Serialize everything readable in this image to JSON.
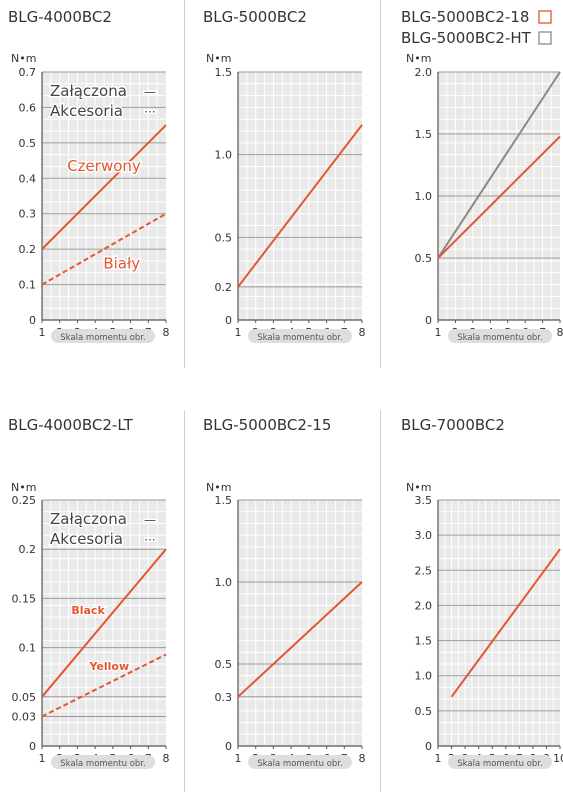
{
  "theme": {
    "grid_bg": "#e9e9e9",
    "grid_minor": "#ffffff",
    "grid_major": "#9a9a9a",
    "series_color": "#e4572e",
    "gray_series_color": "#8a8a8a",
    "text_color": "#333333",
    "pill_bg": "#dedede"
  },
  "chart_data": [
    {
      "type": "line",
      "title": "BLG-4000BC2",
      "ylabel": "N•m",
      "xlabel": "Skala momentu obr.",
      "xlim": [
        1,
        8
      ],
      "ylim": [
        0,
        0.7
      ],
      "xticks": [
        1,
        2,
        3,
        4,
        5,
        6,
        7,
        8
      ],
      "yticks": [
        0,
        0.1,
        0.2,
        0.3,
        0.4,
        0.5,
        0.6,
        0.7
      ],
      "ytick_labels": [
        "0",
        "0.1",
        "0.2",
        "0.3",
        "0.4",
        "0.5",
        "0.6",
        "0.7"
      ],
      "legend": [
        {
          "label": "Załączona",
          "symbol": "—"
        },
        {
          "label": "Akcesoria",
          "symbol": "···"
        }
      ],
      "series": [
        {
          "name": "Czerwony",
          "style": "solid",
          "x": [
            1,
            8
          ],
          "y": [
            0.2,
            0.55
          ],
          "label_at": [
            4.5,
            0.42
          ]
        },
        {
          "name": "Biały",
          "style": "dashed",
          "x": [
            1,
            8
          ],
          "y": [
            0.1,
            0.3
          ],
          "label_at": [
            5.5,
            0.145
          ]
        }
      ]
    },
    {
      "type": "line",
      "title": "BLG-5000BC2",
      "ylabel": "N•m",
      "xlabel": "Skala momentu obr.",
      "xlim": [
        1,
        8
      ],
      "ylim": [
        0,
        1.5
      ],
      "xticks": [
        1,
        2,
        3,
        4,
        5,
        6,
        7,
        8
      ],
      "yticks": [
        0,
        0.2,
        0.5,
        1.0,
        1.5
      ],
      "ytick_labels": [
        "0",
        "0.2",
        "0.5",
        "1.0",
        "1.5"
      ],
      "series": [
        {
          "style": "solid",
          "x": [
            1,
            8
          ],
          "y": [
            0.2,
            1.18
          ]
        }
      ]
    },
    {
      "type": "line",
      "title_lines": [
        {
          "text": "BLG-5000BC2-18",
          "box": "orange"
        },
        {
          "text": "BLG-5000BC2-HT",
          "box": "gray"
        }
      ],
      "ylabel": "N•m",
      "xlabel": "Skala momentu obr.",
      "xlim": [
        1,
        8
      ],
      "ylim": [
        0,
        2.0
      ],
      "xticks": [
        1,
        2,
        3,
        4,
        5,
        6,
        7,
        8
      ],
      "yticks": [
        0,
        0.5,
        1.0,
        1.5,
        2.0
      ],
      "ytick_labels": [
        "0",
        "0.5",
        "1.0",
        "1.5",
        "2.0"
      ],
      "series": [
        {
          "style": "solid",
          "color": "gray",
          "x": [
            1,
            8
          ],
          "y": [
            0.5,
            2.0
          ]
        },
        {
          "style": "solid",
          "x": [
            1,
            8
          ],
          "y": [
            0.5,
            1.48
          ]
        }
      ]
    },
    {
      "type": "line",
      "title": "BLG-4000BC2-LT",
      "ylabel": "N•m",
      "xlabel": "Skala momentu obr.",
      "xlim": [
        1,
        8
      ],
      "ylim": [
        0,
        0.25
      ],
      "xticks": [
        1,
        2,
        3,
        4,
        5,
        6,
        7,
        8
      ],
      "yticks": [
        0,
        0.03,
        0.05,
        0.1,
        0.15,
        0.2,
        0.25
      ],
      "ytick_labels": [
        "0",
        "0.03",
        "0.05",
        "0.1",
        "0.15",
        "0.2",
        "0.25"
      ],
      "legend": [
        {
          "label": "Załączona",
          "symbol": "—"
        },
        {
          "label": "Akcesoria",
          "symbol": "···"
        }
      ],
      "series": [
        {
          "name": "Black",
          "style": "solid",
          "x": [
            1,
            8
          ],
          "y": [
            0.05,
            0.2
          ],
          "label_at": [
            3.6,
            0.134
          ]
        },
        {
          "name": "Yellow",
          "style": "dashed",
          "x": [
            1,
            8
          ],
          "y": [
            0.03,
            0.093
          ],
          "label_at": [
            4.8,
            0.077
          ]
        }
      ]
    },
    {
      "type": "line",
      "title": "BLG-5000BC2-15",
      "ylabel": "N•m",
      "xlabel": "Skala momentu obr.",
      "xlim": [
        1,
        8
      ],
      "ylim": [
        0,
        1.5
      ],
      "xticks": [
        1,
        2,
        3,
        4,
        5,
        6,
        7,
        8
      ],
      "yticks": [
        0,
        0.3,
        0.5,
        1.0,
        1.5
      ],
      "ytick_labels": [
        "0",
        "0.3",
        "0.5",
        "1.0",
        "1.5"
      ],
      "series": [
        {
          "style": "solid",
          "x": [
            1,
            8
          ],
          "y": [
            0.3,
            1.0
          ]
        }
      ]
    },
    {
      "type": "line",
      "title": "BLG-7000BC2",
      "ylabel": "N•m",
      "xlabel": "Skala momentu obr.",
      "xlim": [
        1,
        10
      ],
      "ylim": [
        0,
        3.5
      ],
      "xticks": [
        1,
        2,
        3,
        4,
        5,
        6,
        7,
        8,
        9,
        10
      ],
      "yticks": [
        0,
        0.5,
        1.0,
        1.5,
        2.0,
        2.5,
        3.0,
        3.5
      ],
      "ytick_labels": [
        "0",
        "0.5",
        "1.0",
        "1.5",
        "2.0",
        "2.5",
        "3.0",
        "3.5"
      ],
      "series": [
        {
          "style": "solid",
          "x": [
            2,
            10
          ],
          "y": [
            0.7,
            2.8
          ]
        }
      ]
    }
  ]
}
